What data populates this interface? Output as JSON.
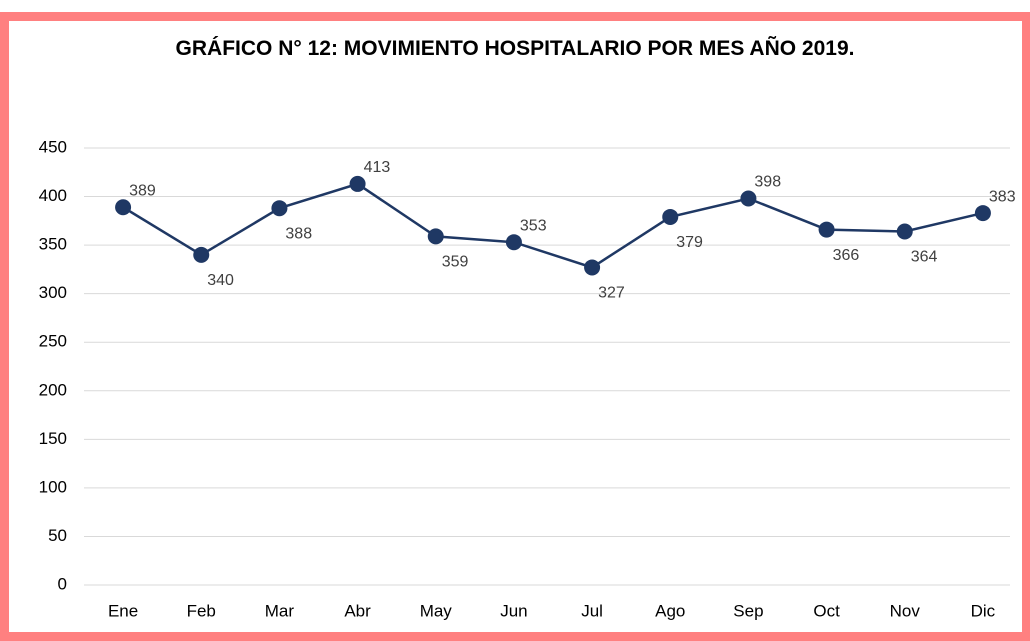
{
  "chart_data": {
    "type": "line",
    "title": "GRÁFICO N° 12: MOVIMIENTO HOSPITALARIO POR MES AÑO 2019.",
    "categories": [
      "Ene",
      "Feb",
      "Mar",
      "Abr",
      "May",
      "Jun",
      "Jul",
      "Ago",
      "Sep",
      "Oct",
      "Nov",
      "Dic"
    ],
    "series": [
      {
        "name": null,
        "color": "#1f3864",
        "values": [
          389,
          340,
          388,
          413,
          359,
          353,
          327,
          379,
          398,
          366,
          364,
          383
        ]
      }
    ],
    "ylim": [
      0,
      450
    ],
    "yticks": [
      0,
      50,
      100,
      150,
      200,
      250,
      300,
      350,
      400,
      450
    ],
    "grid": true
  }
}
